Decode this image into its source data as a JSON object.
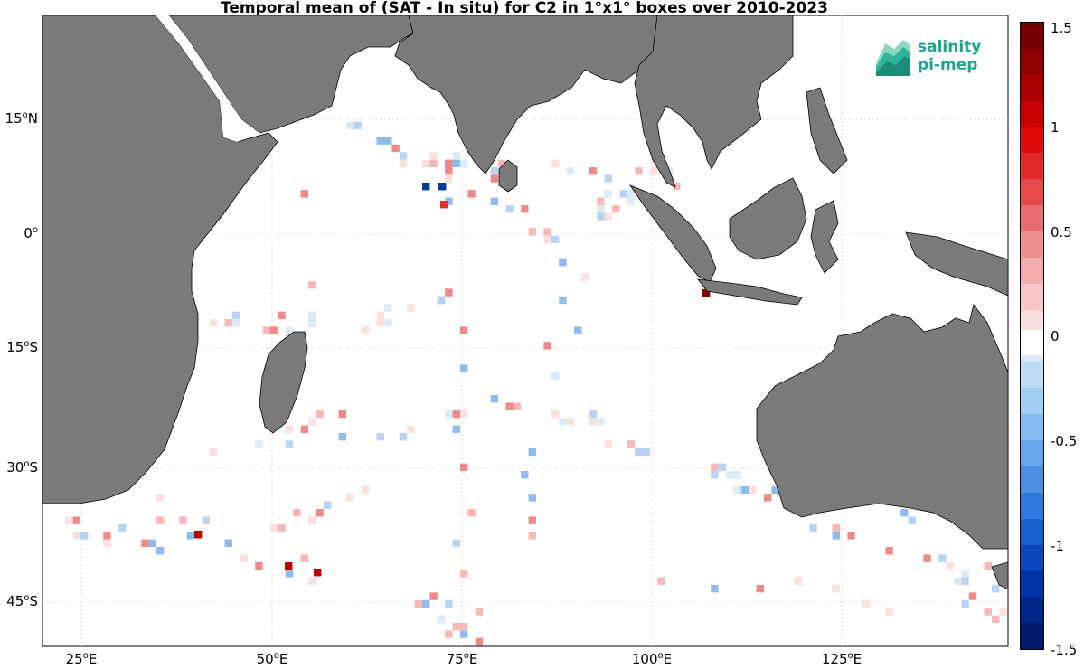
{
  "title": "Temporal mean of (SAT - In situ) for C2 in 1°x1° boxes over 2010-2023",
  "logo": {
    "line1": "salinity",
    "line2": "pi-mep",
    "accent": "#1ea58f"
  },
  "lat_labels": [
    {
      "num": "15",
      "hem": "N"
    },
    {
      "num": "0",
      "hem": ""
    },
    {
      "num": "15",
      "hem": "S"
    },
    {
      "num": "30",
      "hem": "S"
    },
    {
      "num": "45",
      "hem": "S"
    }
  ],
  "lon_labels": [
    {
      "num": "25",
      "hem": "E"
    },
    {
      "num": "50",
      "hem": "E"
    },
    {
      "num": "75",
      "hem": "E"
    },
    {
      "num": "100",
      "hem": "E"
    },
    {
      "num": "125",
      "hem": "E"
    }
  ],
  "colorbar": {
    "range": [
      -1.5,
      1.5
    ],
    "ticks": [
      "1.5",
      "1",
      "0.5",
      "0",
      "-0.5",
      "-1",
      "-1.5"
    ],
    "colors": [
      "#ffffff",
      "#fbe0e0",
      "#f6b8b8",
      "#ef8a8a",
      "#e85a5a",
      "#e33030",
      "#dd1010",
      "#c00000",
      "#8a0000",
      "#ddeaf8",
      "#b8d4f2",
      "#8fbcec",
      "#5f9fe3",
      "#2f80da",
      "#0a5fc8",
      "#003c9a",
      "#001a6e"
    ],
    "land": "#7a7a7a"
  }
}
